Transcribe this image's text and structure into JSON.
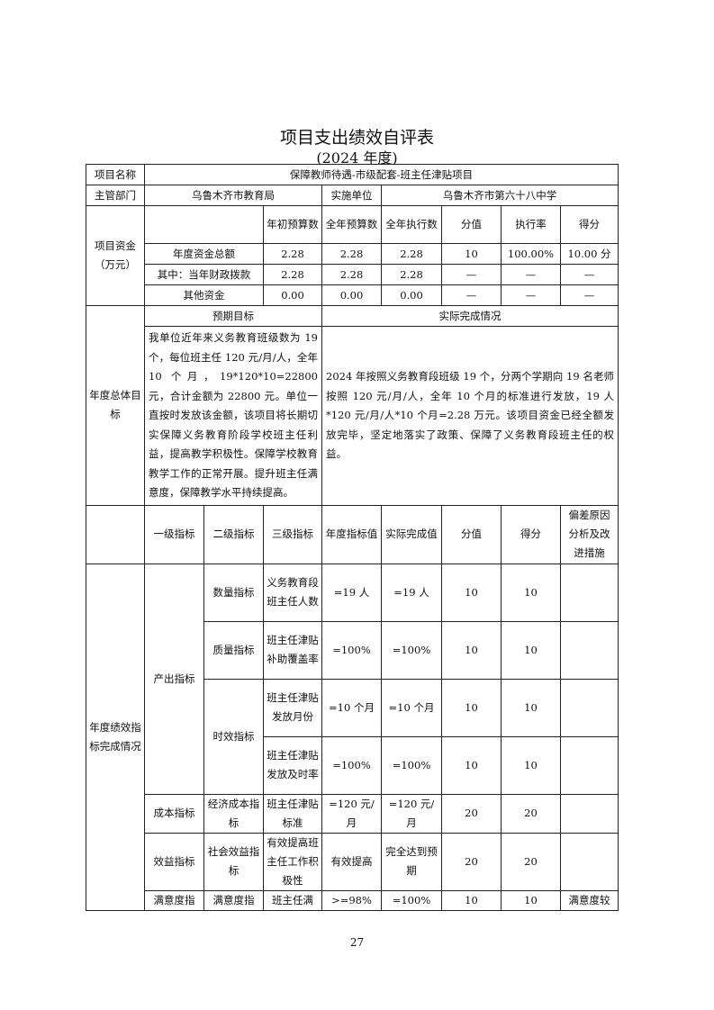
{
  "title": "项目支出绩效自评表",
  "subtitle": "(2024 年度)",
  "project": {
    "name_label": "项目名称",
    "name": "保障教师待遇-市级配套-班主任津贴项目"
  },
  "dept": {
    "label": "主管部门",
    "value": "乌鲁木齐市教育局",
    "impl_label": "实施单位",
    "impl_value": "乌鲁木齐市第六十八中学"
  },
  "funds": {
    "label": "项目资金（万元）",
    "headers": [
      "年初预算数",
      "全年预算数",
      "全年执行数",
      "分值",
      "执行率",
      "得分"
    ],
    "rows": [
      {
        "label": "年度资金总额",
        "values": [
          "2.28",
          "2.28",
          "2.28",
          "10",
          "100.00%",
          "10.00 分"
        ]
      },
      {
        "label": "其中：当年财政拨款",
        "values": [
          "2.28",
          "2.28",
          "2.28",
          "—",
          "—",
          "—"
        ]
      },
      {
        "label": "其他资金",
        "values": [
          "0.00",
          "0.00",
          "0.00",
          "—",
          "—",
          "—"
        ]
      }
    ]
  },
  "goals": {
    "label": "年度总体目标",
    "expected_label": "预期目标",
    "actual_label": "实际完成情况",
    "expected": "我单位近年来义务教育班级数为 19 个，每位班主任 120 元/月/人，全年 10 个月，19*120*10=22800 元，合计金额为 22800 元。单位一直按时发放该金额，该项目将长期切实保障义务教育阶段学校班主任利益，提高教学积极性。保障学校教育教学工作的正常开展。提升班主任满意度，保障教学水平持续提高。",
    "actual": "2024 年按照义务教育段班级 19 个，分两个学期向 19 名老师按照 120 元/月/人，全年 10 个月的标准进行发放，19 人*120 元/月/人*10 个月=2.28 万元。该项目资金已经全额发放完毕，坚定地落实了政策、保障了义务教育段班主任的权益。"
  },
  "indicators": {
    "label": "年度绩效指标完成情况",
    "headers": [
      "一级指标",
      "二级指标",
      "三级指标",
      "年度指标值",
      "实际完成值",
      "分值",
      "得分",
      "偏差原因分析及改进措施"
    ],
    "output_label": "产出指标",
    "rows": [
      {
        "l2": "数量指标",
        "l3": "义务教育段班主任人数",
        "target": "=19 人",
        "actual": "=19 人",
        "score_value": "10",
        "score": "10",
        "note": ""
      },
      {
        "l2": "质量指标",
        "l3": "班主任津贴补助覆盖率",
        "target": "=100%",
        "actual": "=100%",
        "score_value": "10",
        "score": "10",
        "note": ""
      },
      {
        "l2": "时效指标",
        "l3": "班主任津贴发放月份",
        "target": "=10 个月",
        "actual": "=10 个月",
        "score_value": "10",
        "score": "10",
        "note": ""
      },
      {
        "l3": "班主任津贴发放及时率",
        "target": "=100%",
        "actual": "=100%",
        "score_value": "10",
        "score": "10",
        "note": ""
      },
      {
        "l1": "成本指标",
        "l2": "经济成本指标",
        "l3": "班主任津贴标准",
        "target": "=120 元/月",
        "actual": "=120 元/月",
        "score_value": "20",
        "score": "20",
        "note": ""
      },
      {
        "l1": "效益指标",
        "l2": "社会效益指标",
        "l3": "有效提高班主任工作积极性",
        "target": "有效提高",
        "actual": "完全达到预期",
        "score_value": "20",
        "score": "20",
        "note": ""
      },
      {
        "l1": "满意度指",
        "l2": "满意度指",
        "l3": "班主任满",
        "target": ">=98%",
        "actual": "=100%",
        "score_value": "10",
        "score": "10",
        "note": "满意度较"
      }
    ]
  },
  "page_number": "27"
}
